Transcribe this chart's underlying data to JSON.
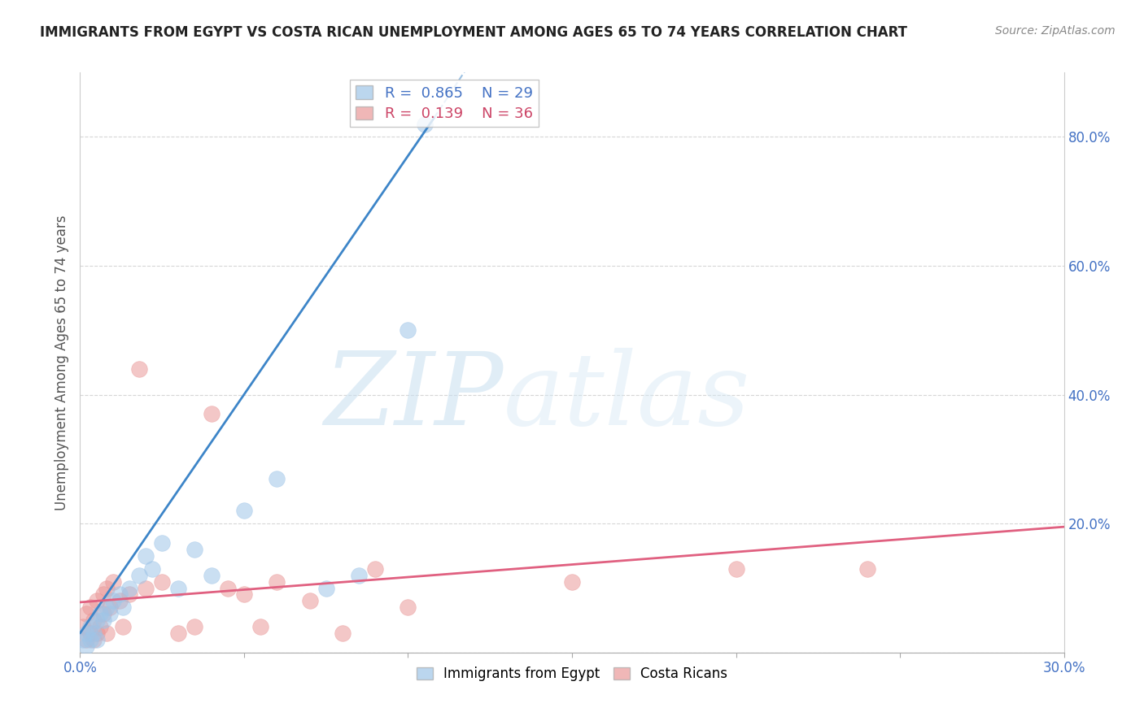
{
  "title": "IMMIGRANTS FROM EGYPT VS COSTA RICAN UNEMPLOYMENT AMONG AGES 65 TO 74 YEARS CORRELATION CHART",
  "source": "Source: ZipAtlas.com",
  "ylabel": "Unemployment Among Ages 65 to 74 years",
  "xlim": [
    0.0,
    0.3
  ],
  "ylim": [
    0.0,
    0.9
  ],
  "xticks": [
    0.0,
    0.05,
    0.1,
    0.15,
    0.2,
    0.25,
    0.3
  ],
  "xtick_labels": [
    "0.0%",
    "",
    "",
    "",
    "",
    "",
    "30.0%"
  ],
  "yticks": [
    0.0,
    0.2,
    0.4,
    0.6,
    0.8
  ],
  "ytick_labels": [
    "",
    "20.0%",
    "40.0%",
    "60.0%",
    "80.0%"
  ],
  "blue_color": "#9fc5e8",
  "pink_color": "#ea9999",
  "blue_line_color": "#3d85c8",
  "pink_line_color": "#e06080",
  "R_blue": 0.865,
  "N_blue": 29,
  "R_pink": 0.139,
  "N_pink": 36,
  "blue_scatter_x": [
    0.001,
    0.002,
    0.002,
    0.003,
    0.003,
    0.004,
    0.005,
    0.005,
    0.006,
    0.007,
    0.008,
    0.009,
    0.01,
    0.012,
    0.013,
    0.015,
    0.018,
    0.02,
    0.022,
    0.025,
    0.03,
    0.035,
    0.04,
    0.05,
    0.06,
    0.075,
    0.085,
    0.1,
    0.105
  ],
  "blue_scatter_y": [
    0.02,
    0.01,
    0.03,
    0.02,
    0.04,
    0.03,
    0.05,
    0.02,
    0.06,
    0.05,
    0.07,
    0.06,
    0.08,
    0.09,
    0.07,
    0.1,
    0.12,
    0.15,
    0.13,
    0.17,
    0.1,
    0.16,
    0.12,
    0.22,
    0.27,
    0.1,
    0.12,
    0.5,
    0.82
  ],
  "pink_scatter_x": [
    0.001,
    0.002,
    0.002,
    0.003,
    0.003,
    0.004,
    0.004,
    0.005,
    0.005,
    0.006,
    0.007,
    0.007,
    0.008,
    0.008,
    0.009,
    0.01,
    0.012,
    0.013,
    0.015,
    0.018,
    0.02,
    0.025,
    0.03,
    0.035,
    0.04,
    0.045,
    0.05,
    0.055,
    0.06,
    0.07,
    0.08,
    0.09,
    0.1,
    0.15,
    0.2,
    0.24
  ],
  "pink_scatter_y": [
    0.04,
    0.02,
    0.06,
    0.03,
    0.07,
    0.02,
    0.05,
    0.03,
    0.08,
    0.04,
    0.06,
    0.09,
    0.03,
    0.1,
    0.07,
    0.11,
    0.08,
    0.04,
    0.09,
    0.44,
    0.1,
    0.11,
    0.03,
    0.04,
    0.37,
    0.1,
    0.09,
    0.04,
    0.11,
    0.08,
    0.03,
    0.13,
    0.07,
    0.11,
    0.13,
    0.13
  ],
  "blue_trendline_x": [
    0.0,
    0.108
  ],
  "blue_trendline_y": [
    0.03,
    0.83
  ],
  "pink_trendline_x": [
    0.0,
    0.3
  ],
  "pink_trendline_y": [
    0.078,
    0.195
  ],
  "watermark_zip": "ZIP",
  "watermark_atlas": "atlas",
  "background_color": "#ffffff",
  "grid_color": "#cccccc"
}
